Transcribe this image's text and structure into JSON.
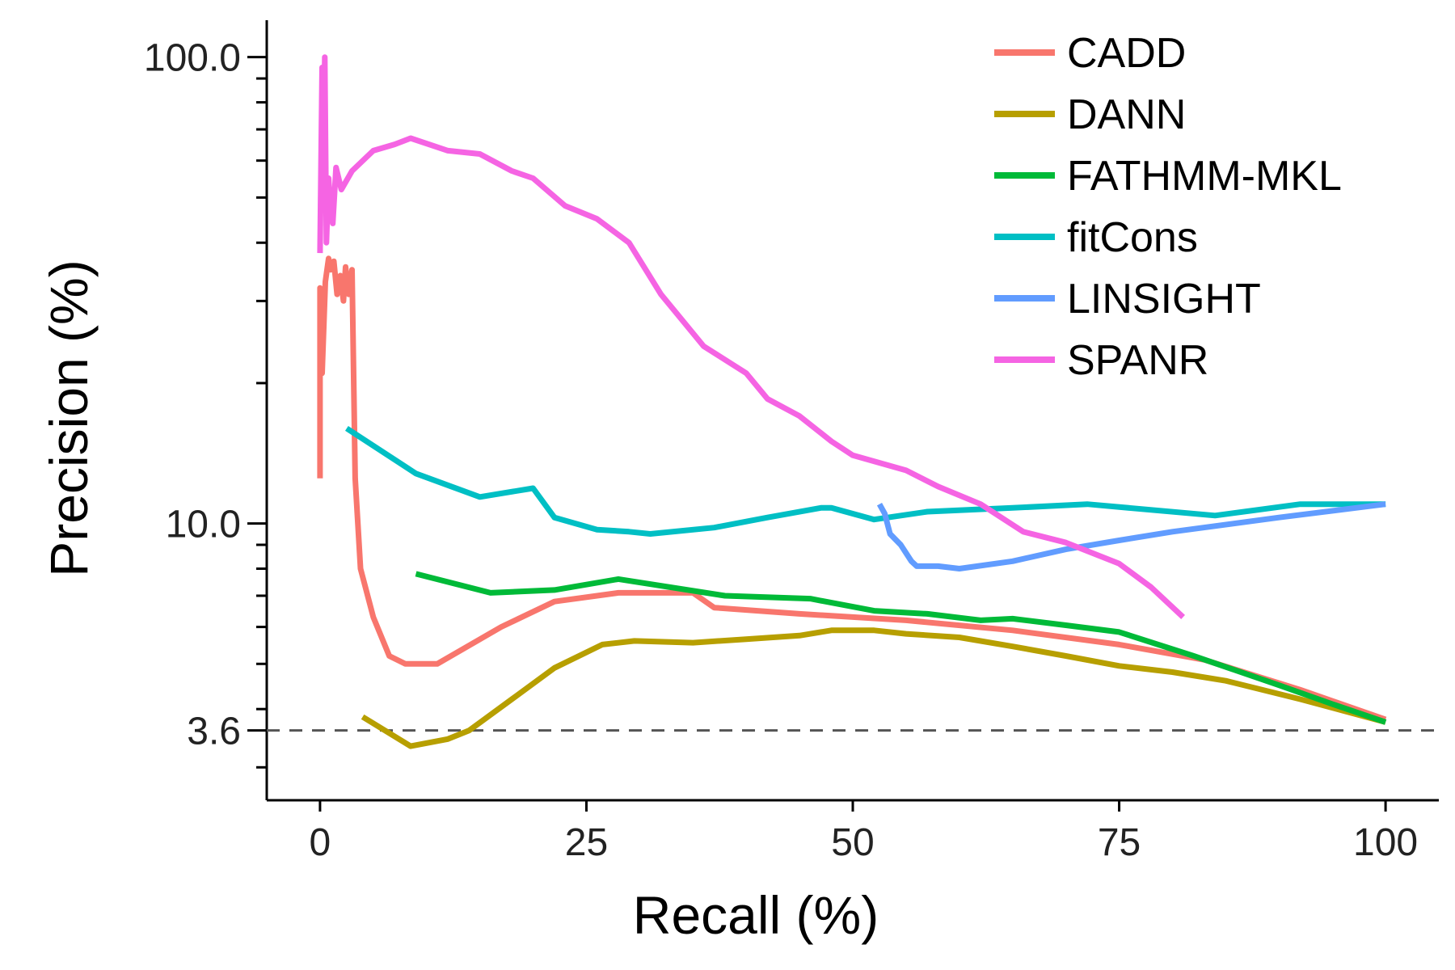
{
  "chart_data": {
    "type": "line",
    "xlabel": "Recall (%)",
    "ylabel": "Precision (%)",
    "xlim": [
      -5,
      105
    ],
    "ylim": [
      2.55,
      120
    ],
    "yscale": "log",
    "xticks": [
      0,
      25,
      50,
      75,
      100
    ],
    "xtick_labels": [
      "0",
      "25",
      "50",
      "75",
      "100"
    ],
    "yticks": [
      3.6,
      10,
      100
    ],
    "ytick_labels": [
      "3.6",
      "10.0",
      "100.0"
    ],
    "yminor_ticks": [
      3,
      4,
      5,
      6,
      7,
      8,
      9,
      20,
      30,
      40,
      50,
      60,
      70,
      80,
      90
    ],
    "baseline": 3.6,
    "grid": false,
    "legend_position": "top-right",
    "series": [
      {
        "name": "CADD",
        "color": "#F8766D",
        "x": [
          0,
          0,
          0.2,
          0.5,
          0.8,
          1,
          1.3,
          1.6,
          1.9,
          2.2,
          2.4,
          2.7,
          3,
          3.3,
          3.8,
          5,
          6.5,
          8,
          11,
          17,
          22,
          28,
          35,
          37,
          45,
          55,
          65,
          75,
          83,
          92,
          100
        ],
        "y": [
          12.5,
          32,
          21,
          33,
          37,
          35,
          36.5,
          31,
          34,
          30,
          35.5,
          31,
          35,
          12.5,
          8,
          6.3,
          5.2,
          5.0,
          5.0,
          6.0,
          6.8,
          7.1,
          7.1,
          6.6,
          6.4,
          6.2,
          5.9,
          5.5,
          5.1,
          4.4,
          3.8
        ]
      },
      {
        "name": "DANN",
        "color": "#B79F00",
        "x": [
          4,
          8.5,
          12,
          14,
          18,
          22,
          26.5,
          29.5,
          35,
          40,
          45,
          48,
          52,
          55,
          60,
          65,
          70,
          75,
          80,
          85,
          92,
          100
        ],
        "y": [
          3.85,
          3.33,
          3.45,
          3.6,
          4.2,
          4.9,
          5.5,
          5.6,
          5.55,
          5.65,
          5.75,
          5.9,
          5.9,
          5.8,
          5.7,
          5.45,
          5.2,
          4.95,
          4.8,
          4.6,
          4.2,
          3.75
        ]
      },
      {
        "name": "FATHMM-MKL",
        "color": "#00BA38",
        "x": [
          9,
          16,
          22,
          28,
          38,
          46,
          52,
          57,
          62,
          65,
          70,
          75,
          82,
          90,
          95,
          100
        ],
        "y": [
          7.8,
          7.1,
          7.2,
          7.6,
          7.0,
          6.9,
          6.5,
          6.4,
          6.2,
          6.25,
          6.05,
          5.85,
          5.2,
          4.5,
          4.1,
          3.75
        ]
      },
      {
        "name": "fitCons",
        "color": "#00BFC4",
        "x": [
          2.5,
          9,
          15,
          20,
          22,
          26,
          29,
          31,
          37,
          42,
          47,
          48,
          52,
          57,
          65,
          72,
          84,
          92,
          100
        ],
        "y": [
          16,
          12.8,
          11.4,
          11.9,
          10.3,
          9.7,
          9.6,
          9.5,
          9.8,
          10.3,
          10.8,
          10.8,
          10.2,
          10.6,
          10.8,
          11.0,
          10.4,
          11.0,
          11.0
        ]
      },
      {
        "name": "LINSIGHT",
        "color": "#619CFF",
        "x": [
          52.5,
          53,
          53.5,
          54.5,
          55.5,
          56,
          58,
          60,
          65,
          70,
          75,
          80,
          90,
          100
        ],
        "y": [
          11.0,
          10.5,
          9.5,
          9.0,
          8.3,
          8.1,
          8.1,
          8.0,
          8.3,
          8.8,
          9.2,
          9.6,
          10.3,
          11.0
        ]
      },
      {
        "name": "SPANR",
        "color": "#F564E3",
        "x": [
          0,
          0.2,
          0.35,
          0.45,
          0.6,
          0.8,
          1,
          1.2,
          1.5,
          2,
          3,
          5,
          7,
          8.5,
          12,
          15,
          18,
          20,
          23,
          26,
          29,
          32,
          36,
          40,
          42,
          45,
          48,
          50,
          55,
          58,
          62,
          66,
          70,
          75,
          78,
          81
        ],
        "y": [
          38,
          95,
          70,
          100,
          40,
          55,
          47,
          44,
          58,
          52,
          57,
          63,
          65,
          67,
          63,
          62,
          57,
          55,
          48,
          45,
          40,
          31,
          24,
          21,
          18.5,
          17,
          15,
          14,
          13,
          12,
          11,
          9.6,
          9.1,
          8.2,
          7.3,
          6.3
        ]
      }
    ]
  }
}
